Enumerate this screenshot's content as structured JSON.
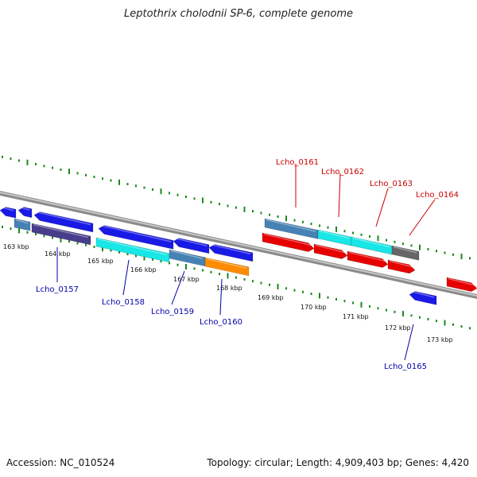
{
  "title": "Leptothrix cholodnii SP-6, complete genome",
  "footer": {
    "accession": "Accession: NC_010524",
    "summary": "Topology: circular; Length: 4,909,403 bp; Genes: 4,420"
  },
  "colors": {
    "backbone": "#808080",
    "tick": "#1a8a1a",
    "blue": "#1a1ae6",
    "steelblue": "#4682b4",
    "slateblue": "#483d8b",
    "cyan": "#19e6e6",
    "orange": "#ff8c00",
    "red": "#e60000",
    "gray": "#666666",
    "label_forward": "#cc0000",
    "label_reverse": "#0000aa"
  },
  "scale_labels": [
    "163 kbp",
    "164 kbp",
    "165 kbp",
    "166 kbp",
    "167 kbp",
    "168 kbp",
    "169 kbp",
    "170 kbp",
    "171 kbp",
    "172 kbp",
    "173 kbp"
  ],
  "forward_gene_labels": [
    "Lcho_0161",
    "Lcho_0162",
    "Lcho_0163",
    "Lcho_0164"
  ],
  "reverse_gene_labels": [
    "Lcho_0157",
    "Lcho_0158",
    "Lcho_0159",
    "Lcho_0160",
    "Lcho_0165"
  ]
}
